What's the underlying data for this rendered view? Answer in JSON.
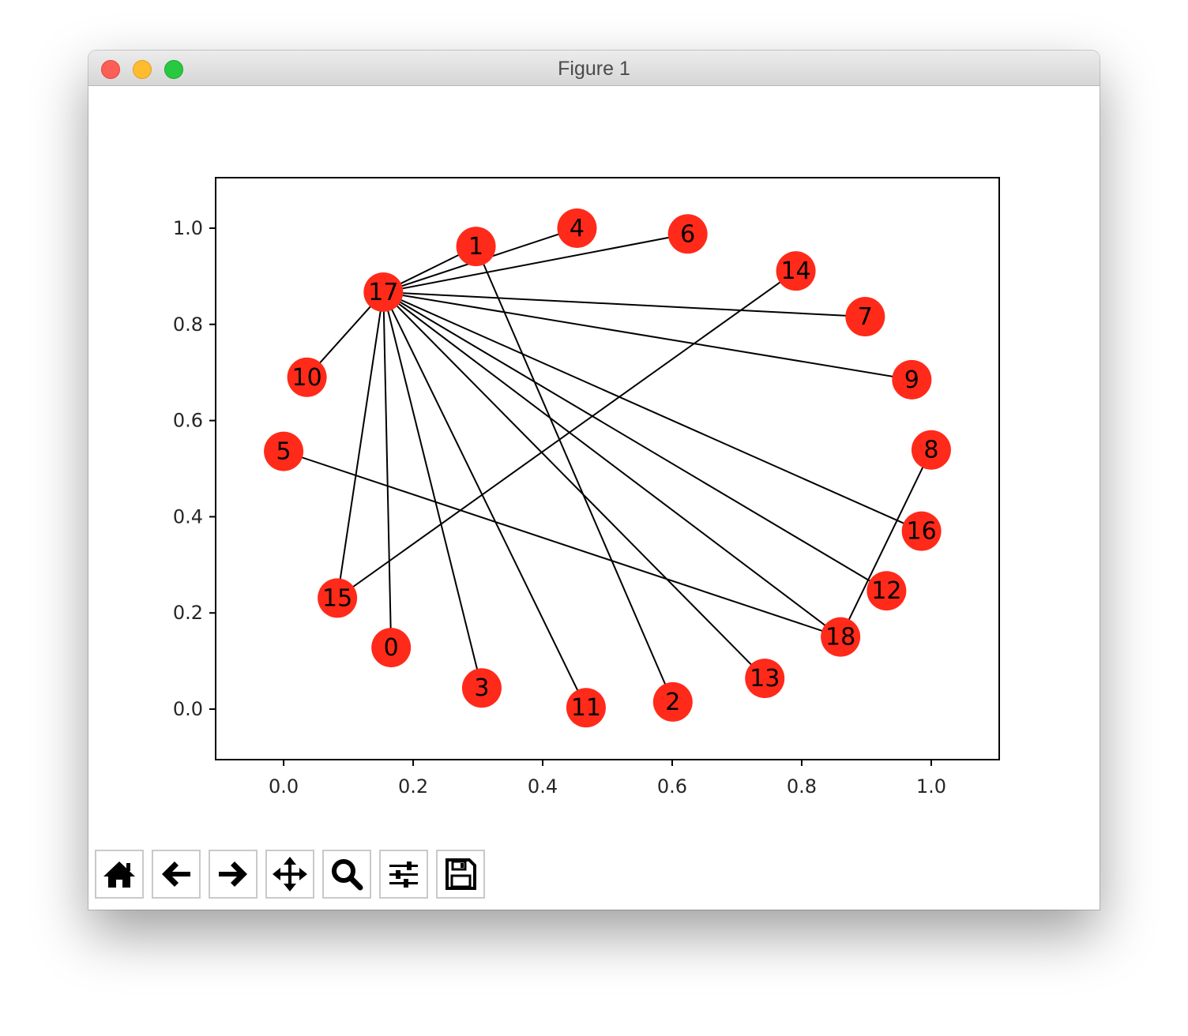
{
  "window": {
    "title": "Figure 1"
  },
  "toolbar": {
    "buttons": [
      {
        "name": "home-button",
        "icon": "home-icon"
      },
      {
        "name": "back-button",
        "icon": "arrow-left-icon"
      },
      {
        "name": "forward-button",
        "icon": "arrow-right-icon"
      },
      {
        "name": "pan-button",
        "icon": "move-icon"
      },
      {
        "name": "zoom-button",
        "icon": "magnifier-icon"
      },
      {
        "name": "configure-subplots-button",
        "icon": "sliders-icon"
      },
      {
        "name": "save-button",
        "icon": "floppy-disk-icon"
      }
    ]
  },
  "chart_data": {
    "type": "scatter",
    "title": "",
    "xlabel": "",
    "ylabel": "",
    "xlim": [
      -0.105,
      1.105
    ],
    "ylim": [
      -0.105,
      1.105
    ],
    "xticks": [
      "0.0",
      "0.2",
      "0.4",
      "0.6",
      "0.8",
      "1.0"
    ],
    "yticks": [
      "0.0",
      "0.2",
      "0.4",
      "0.6",
      "0.8",
      "1.0"
    ],
    "xtick_values": [
      0.0,
      0.2,
      0.4,
      0.6,
      0.8,
      1.0
    ],
    "ytick_values": [
      0.0,
      0.2,
      0.4,
      0.6,
      0.8,
      1.0
    ],
    "grid": false,
    "node_color": "#ff2a1a",
    "edge_color": "#000000",
    "nodes": [
      {
        "label": "0",
        "x": 0.166,
        "y": 0.128
      },
      {
        "label": "1",
        "x": 0.297,
        "y": 0.962
      },
      {
        "label": "2",
        "x": 0.601,
        "y": 0.015
      },
      {
        "label": "3",
        "x": 0.306,
        "y": 0.044
      },
      {
        "label": "4",
        "x": 0.453,
        "y": 1.0
      },
      {
        "label": "5",
        "x": 0.0,
        "y": 0.536
      },
      {
        "label": "6",
        "x": 0.624,
        "y": 0.988
      },
      {
        "label": "7",
        "x": 0.898,
        "y": 0.816
      },
      {
        "label": "8",
        "x": 1.0,
        "y": 0.539
      },
      {
        "label": "9",
        "x": 0.97,
        "y": 0.685
      },
      {
        "label": "10",
        "x": 0.036,
        "y": 0.69
      },
      {
        "label": "11",
        "x": 0.467,
        "y": 0.003
      },
      {
        "label": "12",
        "x": 0.931,
        "y": 0.246
      },
      {
        "label": "13",
        "x": 0.743,
        "y": 0.064
      },
      {
        "label": "14",
        "x": 0.791,
        "y": 0.911
      },
      {
        "label": "15",
        "x": 0.083,
        "y": 0.231
      },
      {
        "label": "16",
        "x": 0.985,
        "y": 0.37
      },
      {
        "label": "17",
        "x": 0.154,
        "y": 0.867
      },
      {
        "label": "18",
        "x": 0.86,
        "y": 0.15
      }
    ],
    "edges": [
      [
        "17",
        "1"
      ],
      [
        "17",
        "4"
      ],
      [
        "17",
        "6"
      ],
      [
        "17",
        "7"
      ],
      [
        "17",
        "9"
      ],
      [
        "17",
        "16"
      ],
      [
        "17",
        "12"
      ],
      [
        "17",
        "18"
      ],
      [
        "17",
        "13"
      ],
      [
        "17",
        "11"
      ],
      [
        "17",
        "3"
      ],
      [
        "17",
        "0"
      ],
      [
        "17",
        "15"
      ],
      [
        "17",
        "10"
      ],
      [
        "1",
        "2"
      ],
      [
        "14",
        "15"
      ],
      [
        "5",
        "18"
      ],
      [
        "8",
        "18"
      ]
    ]
  }
}
